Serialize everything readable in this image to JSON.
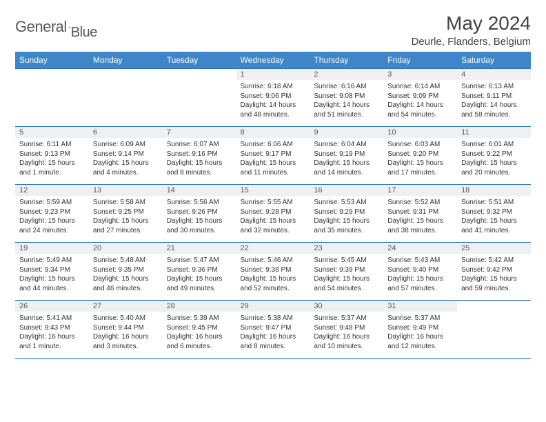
{
  "brand": {
    "name_part1": "General",
    "name_part2": "Blue"
  },
  "title": "May 2024",
  "location": "Deurle, Flanders, Belgium",
  "colors": {
    "header_bg": "#3e86c8",
    "border": "#2b72c0",
    "daynum_bg": "#eef0f2",
    "text": "#333333"
  },
  "font": {
    "family": "Arial",
    "title_size": 28,
    "header_size": 12,
    "cell_size": 10
  },
  "weekdays": [
    "Sunday",
    "Monday",
    "Tuesday",
    "Wednesday",
    "Thursday",
    "Friday",
    "Saturday"
  ],
  "weeks": [
    [
      null,
      null,
      null,
      {
        "n": "1",
        "sr": "Sunrise: 6:18 AM",
        "ss": "Sunset: 9:06 PM",
        "d1": "Daylight: 14 hours",
        "d2": "and 48 minutes."
      },
      {
        "n": "2",
        "sr": "Sunrise: 6:16 AM",
        "ss": "Sunset: 9:08 PM",
        "d1": "Daylight: 14 hours",
        "d2": "and 51 minutes."
      },
      {
        "n": "3",
        "sr": "Sunrise: 6:14 AM",
        "ss": "Sunset: 9:09 PM",
        "d1": "Daylight: 14 hours",
        "d2": "and 54 minutes."
      },
      {
        "n": "4",
        "sr": "Sunrise: 6:13 AM",
        "ss": "Sunset: 9:11 PM",
        "d1": "Daylight: 14 hours",
        "d2": "and 58 minutes."
      }
    ],
    [
      {
        "n": "5",
        "sr": "Sunrise: 6:11 AM",
        "ss": "Sunset: 9:13 PM",
        "d1": "Daylight: 15 hours",
        "d2": "and 1 minute."
      },
      {
        "n": "6",
        "sr": "Sunrise: 6:09 AM",
        "ss": "Sunset: 9:14 PM",
        "d1": "Daylight: 15 hours",
        "d2": "and 4 minutes."
      },
      {
        "n": "7",
        "sr": "Sunrise: 6:07 AM",
        "ss": "Sunset: 9:16 PM",
        "d1": "Daylight: 15 hours",
        "d2": "and 8 minutes."
      },
      {
        "n": "8",
        "sr": "Sunrise: 6:06 AM",
        "ss": "Sunset: 9:17 PM",
        "d1": "Daylight: 15 hours",
        "d2": "and 11 minutes."
      },
      {
        "n": "9",
        "sr": "Sunrise: 6:04 AM",
        "ss": "Sunset: 9:19 PM",
        "d1": "Daylight: 15 hours",
        "d2": "and 14 minutes."
      },
      {
        "n": "10",
        "sr": "Sunrise: 6:03 AM",
        "ss": "Sunset: 9:20 PM",
        "d1": "Daylight: 15 hours",
        "d2": "and 17 minutes."
      },
      {
        "n": "11",
        "sr": "Sunrise: 6:01 AM",
        "ss": "Sunset: 9:22 PM",
        "d1": "Daylight: 15 hours",
        "d2": "and 20 minutes."
      }
    ],
    [
      {
        "n": "12",
        "sr": "Sunrise: 5:59 AM",
        "ss": "Sunset: 9:23 PM",
        "d1": "Daylight: 15 hours",
        "d2": "and 24 minutes."
      },
      {
        "n": "13",
        "sr": "Sunrise: 5:58 AM",
        "ss": "Sunset: 9:25 PM",
        "d1": "Daylight: 15 hours",
        "d2": "and 27 minutes."
      },
      {
        "n": "14",
        "sr": "Sunrise: 5:56 AM",
        "ss": "Sunset: 9:26 PM",
        "d1": "Daylight: 15 hours",
        "d2": "and 30 minutes."
      },
      {
        "n": "15",
        "sr": "Sunrise: 5:55 AM",
        "ss": "Sunset: 9:28 PM",
        "d1": "Daylight: 15 hours",
        "d2": "and 32 minutes."
      },
      {
        "n": "16",
        "sr": "Sunrise: 5:53 AM",
        "ss": "Sunset: 9:29 PM",
        "d1": "Daylight: 15 hours",
        "d2": "and 35 minutes."
      },
      {
        "n": "17",
        "sr": "Sunrise: 5:52 AM",
        "ss": "Sunset: 9:31 PM",
        "d1": "Daylight: 15 hours",
        "d2": "and 38 minutes."
      },
      {
        "n": "18",
        "sr": "Sunrise: 5:51 AM",
        "ss": "Sunset: 9:32 PM",
        "d1": "Daylight: 15 hours",
        "d2": "and 41 minutes."
      }
    ],
    [
      {
        "n": "19",
        "sr": "Sunrise: 5:49 AM",
        "ss": "Sunset: 9:34 PM",
        "d1": "Daylight: 15 hours",
        "d2": "and 44 minutes."
      },
      {
        "n": "20",
        "sr": "Sunrise: 5:48 AM",
        "ss": "Sunset: 9:35 PM",
        "d1": "Daylight: 15 hours",
        "d2": "and 46 minutes."
      },
      {
        "n": "21",
        "sr": "Sunrise: 5:47 AM",
        "ss": "Sunset: 9:36 PM",
        "d1": "Daylight: 15 hours",
        "d2": "and 49 minutes."
      },
      {
        "n": "22",
        "sr": "Sunrise: 5:46 AM",
        "ss": "Sunset: 9:38 PM",
        "d1": "Daylight: 15 hours",
        "d2": "and 52 minutes."
      },
      {
        "n": "23",
        "sr": "Sunrise: 5:45 AM",
        "ss": "Sunset: 9:39 PM",
        "d1": "Daylight: 15 hours",
        "d2": "and 54 minutes."
      },
      {
        "n": "24",
        "sr": "Sunrise: 5:43 AM",
        "ss": "Sunset: 9:40 PM",
        "d1": "Daylight: 15 hours",
        "d2": "and 57 minutes."
      },
      {
        "n": "25",
        "sr": "Sunrise: 5:42 AM",
        "ss": "Sunset: 9:42 PM",
        "d1": "Daylight: 15 hours",
        "d2": "and 59 minutes."
      }
    ],
    [
      {
        "n": "26",
        "sr": "Sunrise: 5:41 AM",
        "ss": "Sunset: 9:43 PM",
        "d1": "Daylight: 16 hours",
        "d2": "and 1 minute."
      },
      {
        "n": "27",
        "sr": "Sunrise: 5:40 AM",
        "ss": "Sunset: 9:44 PM",
        "d1": "Daylight: 16 hours",
        "d2": "and 3 minutes."
      },
      {
        "n": "28",
        "sr": "Sunrise: 5:39 AM",
        "ss": "Sunset: 9:45 PM",
        "d1": "Daylight: 16 hours",
        "d2": "and 6 minutes."
      },
      {
        "n": "29",
        "sr": "Sunrise: 5:38 AM",
        "ss": "Sunset: 9:47 PM",
        "d1": "Daylight: 16 hours",
        "d2": "and 8 minutes."
      },
      {
        "n": "30",
        "sr": "Sunrise: 5:37 AM",
        "ss": "Sunset: 9:48 PM",
        "d1": "Daylight: 16 hours",
        "d2": "and 10 minutes."
      },
      {
        "n": "31",
        "sr": "Sunrise: 5:37 AM",
        "ss": "Sunset: 9:49 PM",
        "d1": "Daylight: 16 hours",
        "d2": "and 12 minutes."
      },
      null
    ]
  ]
}
